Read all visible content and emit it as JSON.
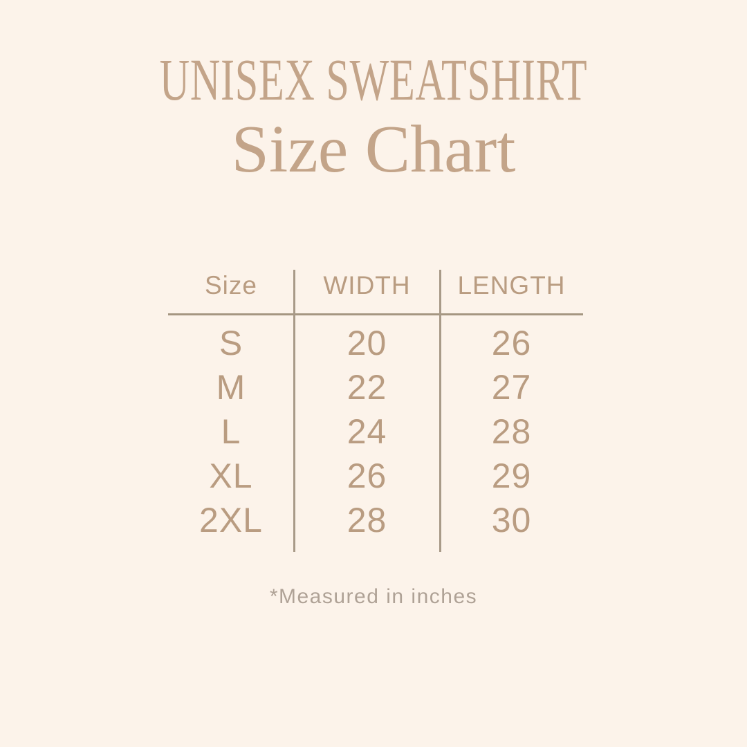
{
  "title": "UNISEX SWEATSHIRT",
  "subtitle": "Size Chart",
  "table": {
    "columns": [
      "Size",
      "WIDTH",
      "LENGTH"
    ],
    "rows": [
      {
        "size": "S",
        "width": "20",
        "length": "26"
      },
      {
        "size": "M",
        "width": "22",
        "length": "27"
      },
      {
        "size": "L",
        "width": "24",
        "length": "28"
      },
      {
        "size": "XL",
        "width": "26",
        "length": "29"
      },
      {
        "size": "2XL",
        "width": "28",
        "length": "30"
      }
    ]
  },
  "footnote": "*Measured in inches",
  "colors": {
    "background": "#FCF3EA",
    "title_text": "#C3A489",
    "table_text": "#B99C81",
    "divider_lines": "#A59681",
    "footnote_text": "#AFA296"
  },
  "chart_data": {
    "type": "table",
    "title": "UNISEX SWEATSHIRT Size Chart",
    "columns": [
      "Size",
      "WIDTH",
      "LENGTH"
    ],
    "rows": [
      [
        "S",
        20,
        26
      ],
      [
        "M",
        22,
        27
      ],
      [
        "L",
        24,
        28
      ],
      [
        "XL",
        26,
        29
      ],
      [
        "2XL",
        28,
        30
      ]
    ],
    "units": "inches"
  }
}
